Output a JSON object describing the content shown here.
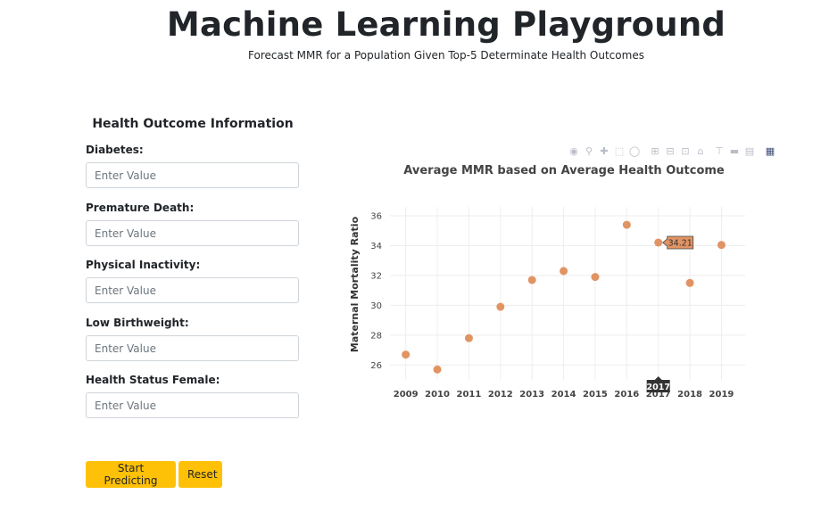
{
  "header": {
    "title": "Machine Learning Playground",
    "subtitle": "Forecast MMR for a Population Given Top-5 Determinate Health Outcomes"
  },
  "form": {
    "title": "Health Outcome Information",
    "fields": [
      {
        "label": "Diabetes:",
        "placeholder": "Enter Value",
        "value": ""
      },
      {
        "label": "Premature Death:",
        "placeholder": "Enter Value",
        "value": ""
      },
      {
        "label": "Physical Inactivity:",
        "placeholder": "Enter Value",
        "value": ""
      },
      {
        "label": "Low Birthweight:",
        "placeholder": "Enter Value",
        "value": ""
      },
      {
        "label": "Health Status Female:",
        "placeholder": "Enter Value",
        "value": ""
      }
    ],
    "start_label": "Start Predicting",
    "reset_label": "Reset"
  },
  "modebar": {
    "icons": [
      "camera-icon",
      "zoom-icon",
      "pan-icon",
      "box-select-icon",
      "lasso-select-icon",
      "zoom-in-icon",
      "zoom-out-icon",
      "autoscale-icon",
      "reset-axes-icon",
      "spike-lines-icon",
      "show-closest-icon",
      "compare-data-icon",
      "plotly-logo-icon"
    ]
  },
  "chart_data": {
    "type": "scatter",
    "title": "Average MMR based on Average Health Outcome",
    "xlabel": "",
    "ylabel": "Maternal Mortality Ratio",
    "x": [
      2009,
      2010,
      2011,
      2012,
      2013,
      2014,
      2015,
      2016,
      2017,
      2018,
      2019
    ],
    "y": [
      26.7,
      25.7,
      27.8,
      29.9,
      31.7,
      32.3,
      31.9,
      35.4,
      34.21,
      31.5,
      34.05
    ],
    "ylim": [
      25,
      36.6
    ],
    "yticks": [
      26,
      28,
      30,
      32,
      34,
      36
    ],
    "grid": true,
    "marker_color": "#e19463",
    "hover": {
      "x_label": "2017",
      "y_label": "34.21"
    }
  }
}
